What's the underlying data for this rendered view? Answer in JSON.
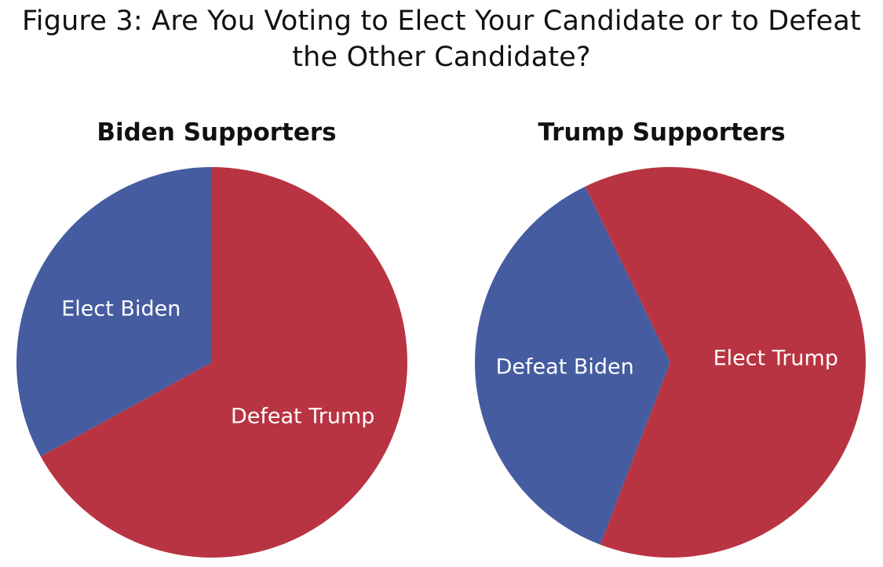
{
  "figure": {
    "title": "Figure 3: Are You Voting to Elect Your Candidate or to Defeat the Other Candidate?"
  },
  "colors": {
    "red": "#B93442",
    "blue": "#455CA0",
    "label_text": "#FFFFFF",
    "title_text": "#111111"
  },
  "chart_data": [
    {
      "type": "pie",
      "title": "Biden Supporters",
      "start_angle_deg": 0,
      "slices": [
        {
          "label": "Defeat Trump",
          "value": 67,
          "color": "#B93442"
        },
        {
          "label": "Elect Biden",
          "value": 33,
          "color": "#455CA0"
        }
      ]
    },
    {
      "type": "pie",
      "title": "Trump Supporters",
      "start_angle_deg": 201,
      "slices": [
        {
          "label": "Defeat Biden",
          "value": 37,
          "color": "#455CA0"
        },
        {
          "label": "Elect Trump",
          "value": 63,
          "color": "#B93442"
        }
      ]
    }
  ]
}
